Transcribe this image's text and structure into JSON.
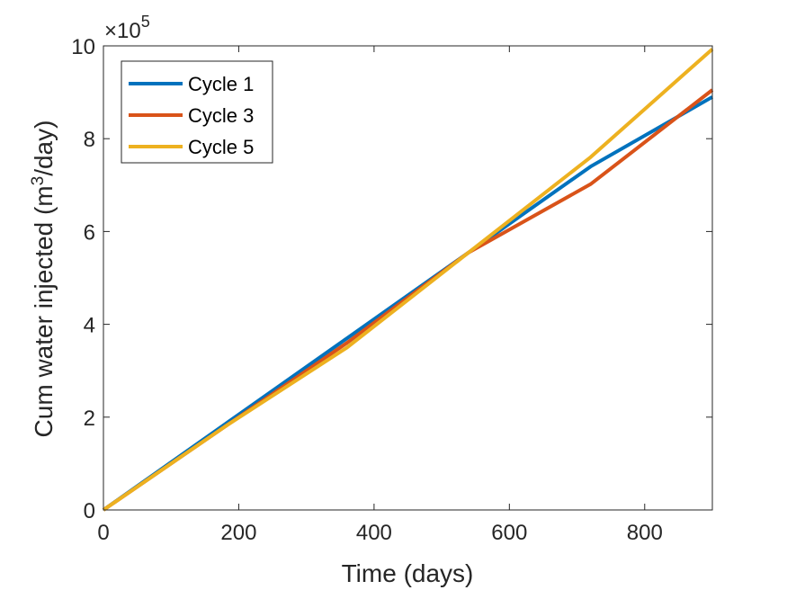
{
  "chart_data": {
    "type": "line",
    "title": "",
    "xlabel": "Time (days)",
    "ylabel_main": "Cum water injected (m",
    "ylabel_sup": "3",
    "ylabel_tail": "/day)",
    "exponent_prefix": "×10",
    "exponent_power": "5",
    "xlim": [
      0,
      900
    ],
    "ylim": [
      0,
      10
    ],
    "xticks": [
      0,
      200,
      400,
      600,
      800
    ],
    "xtick_labels": [
      "0",
      "200",
      "400",
      "600",
      "800"
    ],
    "yticks": [
      0,
      2,
      4,
      6,
      8,
      10
    ],
    "ytick_labels": [
      "0",
      "2",
      "4",
      "6",
      "8",
      "10"
    ],
    "legend_position": "top-left",
    "series": [
      {
        "name": "Cycle 1",
        "color": "#0072BD",
        "x": [
          0,
          180,
          360,
          540,
          720,
          900
        ],
        "y": [
          0,
          1.85,
          3.7,
          5.55,
          7.4,
          8.9
        ]
      },
      {
        "name": "Cycle 3",
        "color": "#D95319",
        "x": [
          0,
          180,
          360,
          540,
          720,
          900
        ],
        "y": [
          0,
          1.8,
          3.6,
          5.55,
          7.02,
          9.05
        ]
      },
      {
        "name": "Cycle 5",
        "color": "#EDB120",
        "x": [
          0,
          180,
          360,
          540,
          720,
          900
        ],
        "y": [
          0,
          1.8,
          3.5,
          5.55,
          7.6,
          9.93
        ]
      }
    ]
  }
}
